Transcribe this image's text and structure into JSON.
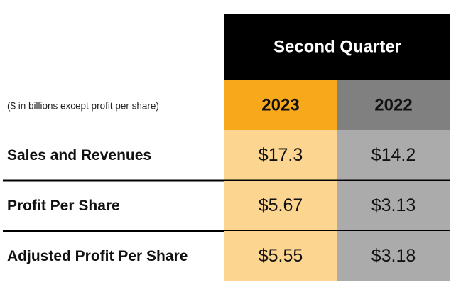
{
  "header": {
    "title": "Second Quarter",
    "note": "($ in billions except profit per share)",
    "columns": [
      "2023",
      "2022"
    ]
  },
  "table": {
    "rows": [
      [
        "Sales and Revenues",
        "$17.3",
        "$14.2"
      ],
      [
        "Profit Per Share",
        "$5.67",
        "$3.13"
      ],
      [
        "Adjusted Profit Per Share",
        "$5.55",
        "$3.18"
      ]
    ]
  }
}
